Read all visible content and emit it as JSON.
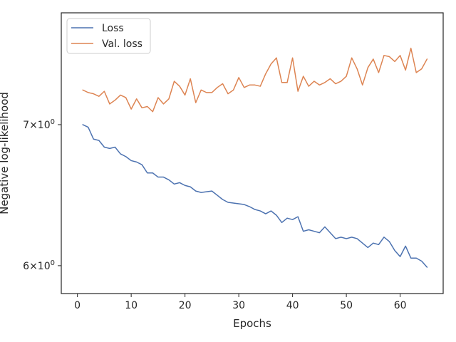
{
  "chart_data": {
    "type": "line",
    "title": "",
    "xlabel": "Epochs",
    "ylabel": "Negative log-likelihood",
    "yscale": "log",
    "xlim": [
      -3,
      68
    ],
    "ylim": [
      5.82,
      7.91
    ],
    "xticks": [
      0,
      10,
      20,
      30,
      40,
      50,
      60
    ],
    "xtick_labels": [
      "0",
      "10",
      "20",
      "30",
      "40",
      "50",
      "60"
    ],
    "yticks": [
      6,
      7
    ],
    "ytick_labels": [
      {
        "base": "6",
        "times": "×",
        "power": "10",
        "exp": "0"
      },
      {
        "base": "7",
        "times": "×",
        "power": "10",
        "exp": "0"
      }
    ],
    "grid": false,
    "legend_position": "top-left",
    "x": [
      1,
      2,
      3,
      4,
      5,
      6,
      7,
      8,
      9,
      10,
      11,
      12,
      13,
      14,
      15,
      16,
      17,
      18,
      19,
      20,
      21,
      22,
      23,
      24,
      25,
      26,
      27,
      28,
      29,
      30,
      31,
      32,
      33,
      34,
      35,
      36,
      37,
      38,
      39,
      40,
      41,
      42,
      43,
      44,
      45,
      46,
      47,
      48,
      49,
      50,
      51,
      52,
      53,
      54,
      55,
      56,
      57,
      58,
      59,
      60,
      61,
      62,
      63,
      64,
      65
    ],
    "series": [
      {
        "name": "Loss",
        "color": "#4c72b0",
        "values": [
          7.0,
          6.98,
          6.89,
          6.88,
          6.83,
          6.82,
          6.83,
          6.78,
          6.76,
          6.73,
          6.72,
          6.7,
          6.64,
          6.64,
          6.61,
          6.61,
          6.59,
          6.56,
          6.57,
          6.55,
          6.54,
          6.51,
          6.5,
          6.505,
          6.51,
          6.48,
          6.45,
          6.43,
          6.425,
          6.42,
          6.415,
          6.4,
          6.38,
          6.37,
          6.35,
          6.37,
          6.34,
          6.29,
          6.32,
          6.31,
          6.33,
          6.23,
          6.24,
          6.23,
          6.22,
          6.26,
          6.22,
          6.18,
          6.19,
          6.18,
          6.19,
          6.18,
          6.15,
          6.12,
          6.15,
          6.14,
          6.19,
          6.16,
          6.1,
          6.06,
          6.13,
          6.05,
          6.05,
          6.03,
          5.99
        ]
      },
      {
        "name": "Val. loss",
        "color": "#dd8452",
        "values": [
          7.27,
          7.25,
          7.24,
          7.22,
          7.26,
          7.16,
          7.19,
          7.23,
          7.21,
          7.12,
          7.2,
          7.13,
          7.14,
          7.1,
          7.21,
          7.16,
          7.2,
          7.34,
          7.3,
          7.23,
          7.36,
          7.17,
          7.27,
          7.25,
          7.25,
          7.29,
          7.32,
          7.24,
          7.27,
          7.37,
          7.29,
          7.31,
          7.31,
          7.3,
          7.4,
          7.48,
          7.53,
          7.33,
          7.33,
          7.53,
          7.26,
          7.38,
          7.3,
          7.34,
          7.31,
          7.33,
          7.36,
          7.32,
          7.34,
          7.38,
          7.53,
          7.44,
          7.31,
          7.45,
          7.52,
          7.41,
          7.55,
          7.54,
          7.5,
          7.55,
          7.43,
          7.61,
          7.41,
          7.44,
          7.52
        ]
      }
    ]
  }
}
